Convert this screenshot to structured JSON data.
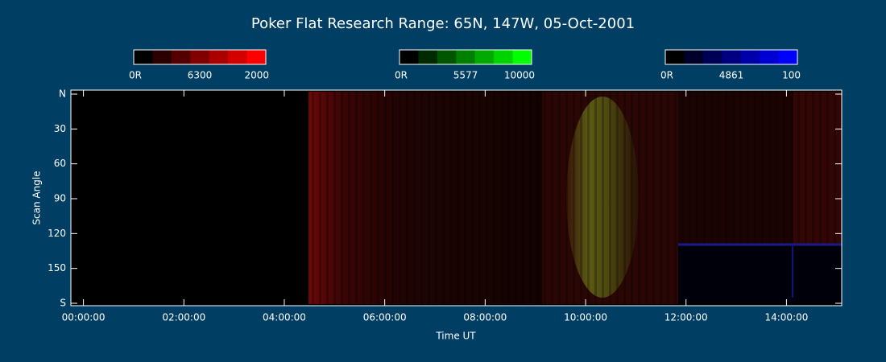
{
  "chart_data": {
    "type": "keogram",
    "title": "Poker Flat Research Range: 65N, 147W, 05-Oct-2001",
    "x_label": "Time UT",
    "y_label": "Scan Angle",
    "xlim": [
      -0.25,
      15.1
    ],
    "xticks": [
      {
        "value": 0,
        "label": "00:00:00"
      },
      {
        "value": 2,
        "label": "02:00:00"
      },
      {
        "value": 4,
        "label": "04:00:00"
      },
      {
        "value": 6,
        "label": "06:00:00"
      },
      {
        "value": 8,
        "label": "08:00:00"
      },
      {
        "value": 10,
        "label": "10:00:00"
      },
      {
        "value": 12,
        "label": "12:00:00"
      },
      {
        "value": 14,
        "label": "14:00:00"
      }
    ],
    "ylim": [
      0,
      180
    ],
    "y_reversed": true,
    "yticks": [
      {
        "value": 0,
        "label": "N"
      },
      30,
      60,
      90,
      120,
      150,
      {
        "value": 180,
        "label": "S"
      }
    ],
    "colorbars": [
      {
        "min_label": "0R",
        "wavelength": "6300",
        "max_label": "2000",
        "colors": [
          "#000000",
          "#2a0000",
          "#550000",
          "#800000",
          "#aa0000",
          "#d40000",
          "#ff0000"
        ]
      },
      {
        "min_label": "0R",
        "wavelength": "5577",
        "max_label": "10000",
        "colors": [
          "#000000",
          "#002a00",
          "#005500",
          "#008000",
          "#00aa00",
          "#00d400",
          "#00ff00"
        ]
      },
      {
        "min_label": "0R",
        "wavelength": "4861",
        "max_label": "100",
        "colors": [
          "#000000",
          "#00002a",
          "#000055",
          "#000080",
          "#0000aa",
          "#0000d4",
          "#0000ff"
        ]
      }
    ]
  }
}
